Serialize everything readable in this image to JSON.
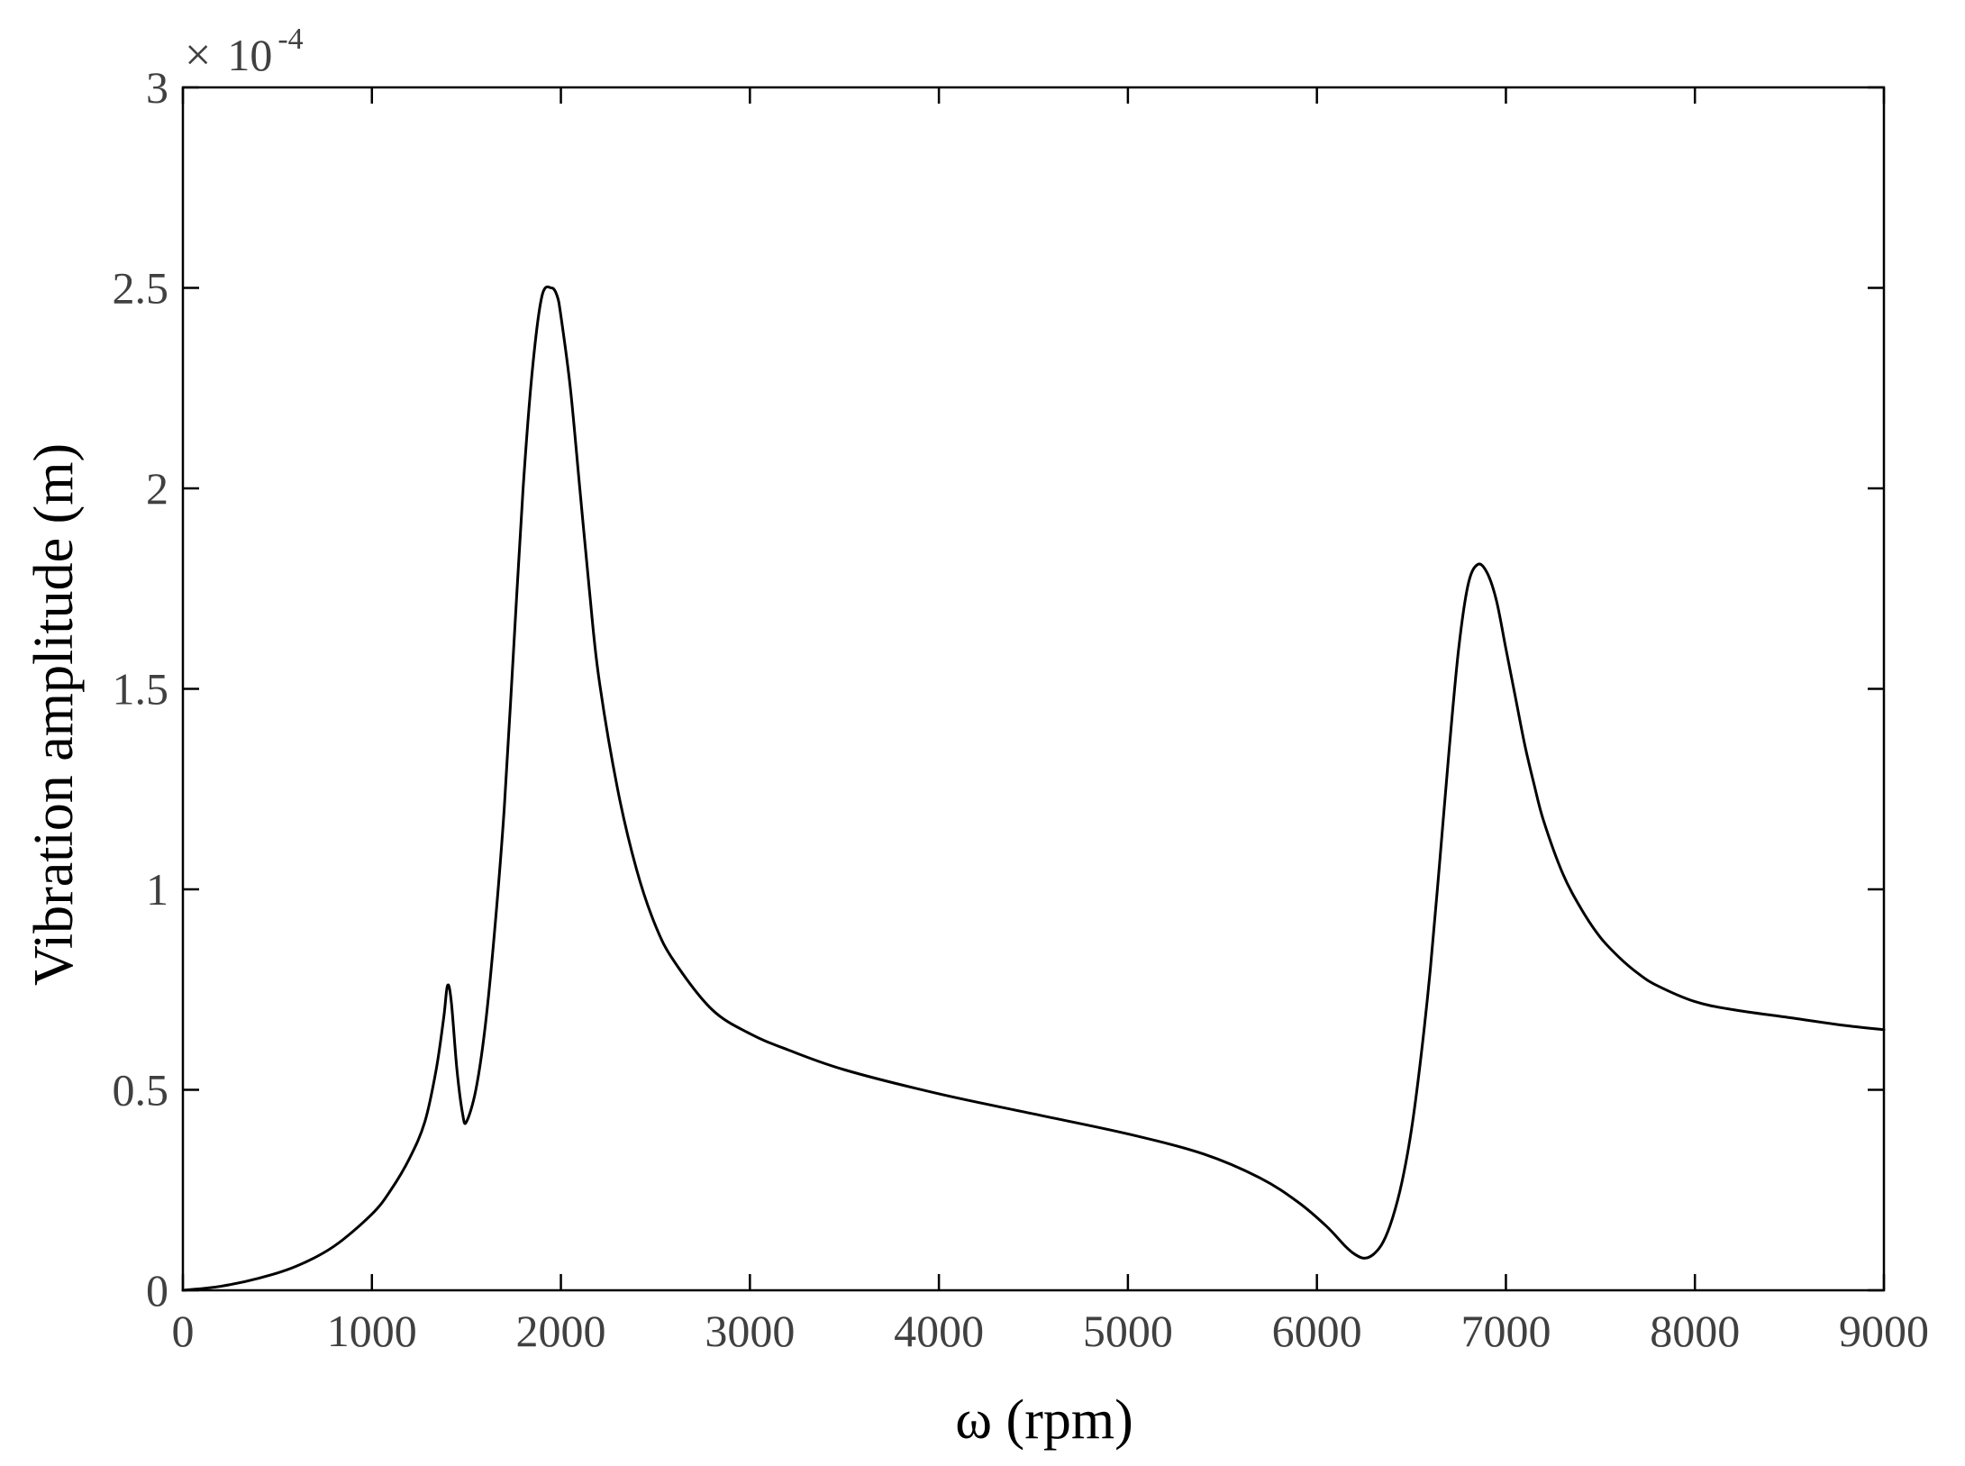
{
  "chart_data": {
    "type": "line",
    "title": "",
    "xlabel": "ω (rpm)",
    "ylabel": "Vibration amplitude (m)",
    "xlim": [
      0,
      9000
    ],
    "ylim": [
      0,
      3
    ],
    "y_multiplier": {
      "times": "×",
      "base": "10",
      "exponent": "-4"
    },
    "xticks": [
      0,
      1000,
      2000,
      3000,
      4000,
      5000,
      6000,
      7000,
      8000,
      9000
    ],
    "xtick_labels": [
      "0",
      "1000",
      "2000",
      "3000",
      "4000",
      "5000",
      "6000",
      "7000",
      "8000",
      "9000"
    ],
    "yticks": [
      0,
      0.5,
      1,
      1.5,
      2,
      2.5,
      3
    ],
    "ytick_labels": [
      "0",
      "0.5",
      "1",
      "1.5",
      "2",
      "2.5",
      "3"
    ],
    "grid": false,
    "box": true,
    "series": [
      {
        "color": "#000000",
        "x": [
          0,
          200,
          400,
          600,
          800,
          1000,
          1100,
          1200,
          1280,
          1340,
          1380,
          1400,
          1420,
          1450,
          1480,
          1500,
          1550,
          1600,
          1650,
          1700,
          1750,
          1800,
          1850,
          1900,
          1950,
          1980,
          2000,
          2050,
          2100,
          2150,
          2200,
          2300,
          2400,
          2500,
          2600,
          2800,
          3000,
          3200,
          3500,
          4000,
          4500,
          5000,
          5400,
          5700,
          5900,
          6050,
          6150,
          6200,
          6250,
          6300,
          6350,
          6400,
          6450,
          6500,
          6550,
          6600,
          6650,
          6700,
          6750,
          6800,
          6850,
          6900,
          6950,
          7000,
          7050,
          7100,
          7150,
          7200,
          7300,
          7400,
          7500,
          7600,
          7700,
          7800,
          8000,
          8200,
          8500,
          8800,
          9000
        ],
        "y": [
          0,
          0.01,
          0.03,
          0.06,
          0.11,
          0.19,
          0.25,
          0.33,
          0.42,
          0.55,
          0.68,
          0.76,
          0.72,
          0.55,
          0.44,
          0.42,
          0.5,
          0.66,
          0.9,
          1.2,
          1.6,
          2.0,
          2.3,
          2.48,
          2.5,
          2.48,
          2.43,
          2.25,
          2.0,
          1.75,
          1.53,
          1.25,
          1.05,
          0.91,
          0.82,
          0.7,
          0.64,
          0.6,
          0.55,
          0.49,
          0.44,
          0.39,
          0.34,
          0.28,
          0.22,
          0.16,
          0.11,
          0.09,
          0.08,
          0.09,
          0.12,
          0.18,
          0.27,
          0.4,
          0.58,
          0.8,
          1.07,
          1.35,
          1.6,
          1.76,
          1.81,
          1.79,
          1.72,
          1.6,
          1.48,
          1.36,
          1.26,
          1.17,
          1.04,
          0.95,
          0.88,
          0.83,
          0.79,
          0.76,
          0.72,
          0.7,
          0.68,
          0.66,
          0.65
        ]
      }
    ]
  }
}
